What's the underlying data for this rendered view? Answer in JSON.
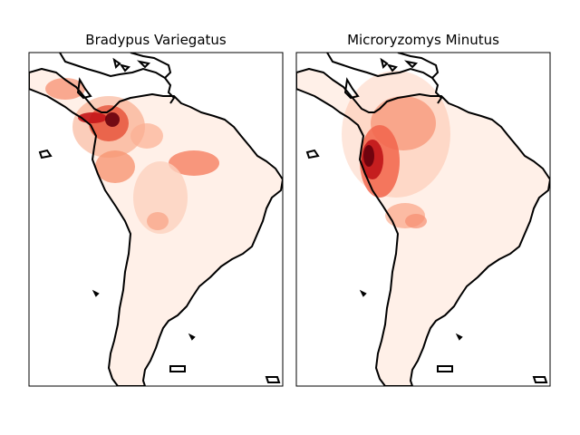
{
  "figure": {
    "panels": [
      {
        "title": "Bradypus Variegatus"
      },
      {
        "title": "Microryzomys Minutus"
      }
    ]
  },
  "colors": {
    "background": "#ffffff",
    "land_low": "#fff0e8",
    "density_mid": "#f4866a",
    "density_high": "#d42020",
    "density_max": "#67000d",
    "coastline": "#000000"
  },
  "colormap": "Reds"
}
